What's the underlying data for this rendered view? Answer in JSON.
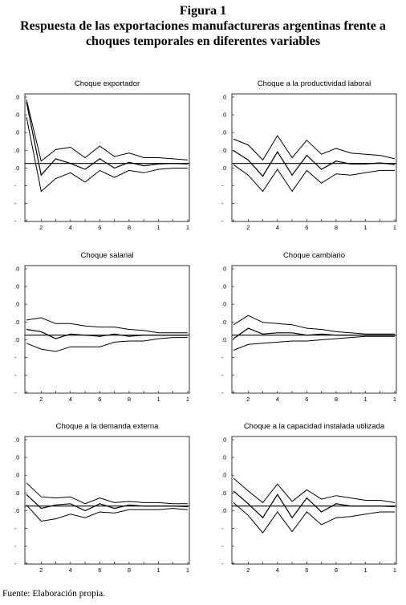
{
  "figure": {
    "label": "Figura 1",
    "title_line1": "Respuesta de las exportaciones manufactureras argentinas frente a",
    "title_line2": "choques temporales en diferentes variables",
    "source": "Fuente: Elaboración propia."
  },
  "chart_data": [
    {
      "type": "line",
      "title": "Choque exportador",
      "x": [
        1,
        2,
        3,
        4,
        5,
        6,
        7,
        8,
        9,
        10,
        11,
        12
      ],
      "x_tick_labels": [
        "2",
        "4",
        "6",
        "8",
        "1",
        "1"
      ],
      "y_tick_labels": [
        ".0",
        ".0",
        ".0",
        ".0",
        ".0",
        "-",
        "-",
        "-"
      ],
      "ylim": [
        -5,
        6
      ],
      "series": [
        {
          "values": [
            5.3,
            -1.0,
            0.4,
            0.0,
            -0.5,
            0.4,
            -0.4,
            0.1,
            -0.2,
            -0.05,
            0.0,
            -0.05
          ]
        },
        {
          "values": [
            5.5,
            0.2,
            1.2,
            1.4,
            0.5,
            1.5,
            0.6,
            0.9,
            0.5,
            0.5,
            0.4,
            0.3
          ]
        },
        {
          "values": [
            4.0,
            -2.4,
            -1.3,
            -0.8,
            -1.6,
            -0.6,
            -1.2,
            -0.6,
            -0.8,
            -0.5,
            -0.4,
            -0.4
          ]
        }
      ]
    },
    {
      "type": "line",
      "title": "Choque a la productividad laboral",
      "x": [
        1,
        2,
        3,
        4,
        5,
        6,
        7,
        8,
        9,
        10,
        11,
        12
      ],
      "x_tick_labels": [
        "2",
        "4",
        "6",
        "8",
        "1",
        "1"
      ],
      "y_tick_labels": [
        ".0",
        ".0",
        ".0",
        ".0",
        ".0",
        "-",
        "-",
        "-"
      ],
      "ylim": [
        -5,
        6
      ],
      "series": [
        {
          "values": [
            1.1,
            0.3,
            -1.1,
            1.0,
            -1.0,
            0.7,
            -0.5,
            0.2,
            -0.05,
            -0.05,
            0.05,
            -0.1
          ]
        },
        {
          "values": [
            2.1,
            1.6,
            0.3,
            2.4,
            0.5,
            2.0,
            0.8,
            1.3,
            0.9,
            0.8,
            0.7,
            0.4
          ]
        },
        {
          "values": [
            -0.1,
            -1.0,
            -2.4,
            -0.5,
            -2.4,
            -0.6,
            -1.7,
            -0.9,
            -1.0,
            -0.8,
            -0.6,
            -0.6
          ]
        }
      ]
    },
    {
      "type": "line",
      "title": "Choque salarial",
      "x": [
        1,
        2,
        3,
        4,
        5,
        6,
        7,
        8,
        9,
        10,
        11,
        12
      ],
      "x_tick_labels": [
        "2",
        "4",
        "6",
        "8",
        "1",
        "1"
      ],
      "y_tick_labels": [
        ".0",
        ".0",
        ".0",
        ".0",
        ".0",
        "-",
        "-",
        "-"
      ],
      "ylim": [
        -5,
        6
      ],
      "series": [
        {
          "values": [
            0.5,
            0.3,
            -0.3,
            0.1,
            0.0,
            -0.1,
            0.1,
            -0.1,
            0.0,
            0.0,
            0.0,
            0.0
          ]
        },
        {
          "values": [
            1.3,
            1.5,
            1.0,
            1.0,
            0.8,
            0.7,
            0.7,
            0.5,
            0.4,
            0.2,
            0.2,
            0.2
          ]
        },
        {
          "values": [
            -0.7,
            -1.2,
            -1.4,
            -1.0,
            -1.0,
            -1.0,
            -0.6,
            -0.5,
            -0.5,
            -0.3,
            -0.2,
            -0.2
          ]
        }
      ]
    },
    {
      "type": "line",
      "title": "Choque cambiario",
      "x": [
        1,
        2,
        3,
        4,
        5,
        6,
        7,
        8,
        9,
        10,
        11,
        12
      ],
      "x_tick_labels": [
        "2",
        "4",
        "6",
        "8",
        "1",
        "1"
      ],
      "y_tick_labels": [
        ".0",
        ".0",
        ".0",
        ".0",
        ".0",
        "-",
        "-",
        "-"
      ],
      "ylim": [
        -5,
        6
      ],
      "series": [
        {
          "values": [
            -0.3,
            0.6,
            0.1,
            0.2,
            0.2,
            0.0,
            0.1,
            0.0,
            0.0,
            0.0,
            0.0,
            0.0
          ]
        },
        {
          "values": [
            0.9,
            1.7,
            1.1,
            1.0,
            0.9,
            0.6,
            0.5,
            0.3,
            0.2,
            0.1,
            0.1,
            0.1
          ]
        },
        {
          "values": [
            -1.3,
            -0.8,
            -0.7,
            -0.6,
            -0.5,
            -0.5,
            -0.4,
            -0.3,
            -0.2,
            -0.1,
            -0.1,
            -0.1
          ]
        }
      ]
    },
    {
      "type": "line",
      "title": "Choque a la demanda externa",
      "x": [
        1,
        2,
        3,
        4,
        5,
        6,
        7,
        8,
        9,
        10,
        11,
        12
      ],
      "x_tick_labels": [
        "2",
        "4",
        "6",
        "8",
        "1",
        "1"
      ],
      "y_tick_labels": [
        ".0",
        ".0",
        ".0",
        ".0",
        ".0",
        "-",
        "-",
        "-"
      ],
      "ylim": [
        -5,
        6
      ],
      "series": [
        {
          "values": [
            1.0,
            -0.2,
            0.1,
            0.2,
            -0.4,
            0.2,
            -0.2,
            0.1,
            0.0,
            0.0,
            0.0,
            -0.05
          ]
        },
        {
          "values": [
            2.0,
            0.8,
            0.7,
            0.8,
            0.2,
            0.7,
            0.3,
            0.4,
            0.3,
            0.3,
            0.2,
            0.2
          ]
        },
        {
          "values": [
            0.1,
            -1.3,
            -1.1,
            -0.7,
            -1.0,
            -0.5,
            -0.6,
            -0.3,
            -0.3,
            -0.3,
            -0.2,
            -0.3
          ]
        }
      ]
    },
    {
      "type": "line",
      "title": "Choque a la capacidad instalada utilizada",
      "x": [
        1,
        2,
        3,
        4,
        5,
        6,
        7,
        8,
        9,
        10,
        11,
        12
      ],
      "x_tick_labels": [
        "2",
        "4",
        "6",
        "8",
        "1",
        "1"
      ],
      "y_tick_labels": [
        ".0",
        ".0",
        ".0",
        ".0",
        ".0",
        "-",
        "-",
        "-"
      ],
      "ylim": [
        -5,
        6
      ],
      "series": [
        {
          "values": [
            1.3,
            0.2,
            -1.0,
            1.0,
            -1.0,
            0.7,
            -0.5,
            0.2,
            0.0,
            0.0,
            0.0,
            -0.05
          ]
        },
        {
          "values": [
            2.4,
            1.3,
            0.3,
            1.9,
            0.4,
            1.4,
            0.6,
            0.9,
            0.7,
            0.5,
            0.5,
            0.3
          ]
        },
        {
          "values": [
            0.3,
            -0.8,
            -2.3,
            -0.5,
            -2.2,
            -0.5,
            -1.6,
            -1.0,
            -0.9,
            -0.7,
            -0.5,
            -0.5
          ]
        }
      ]
    }
  ]
}
